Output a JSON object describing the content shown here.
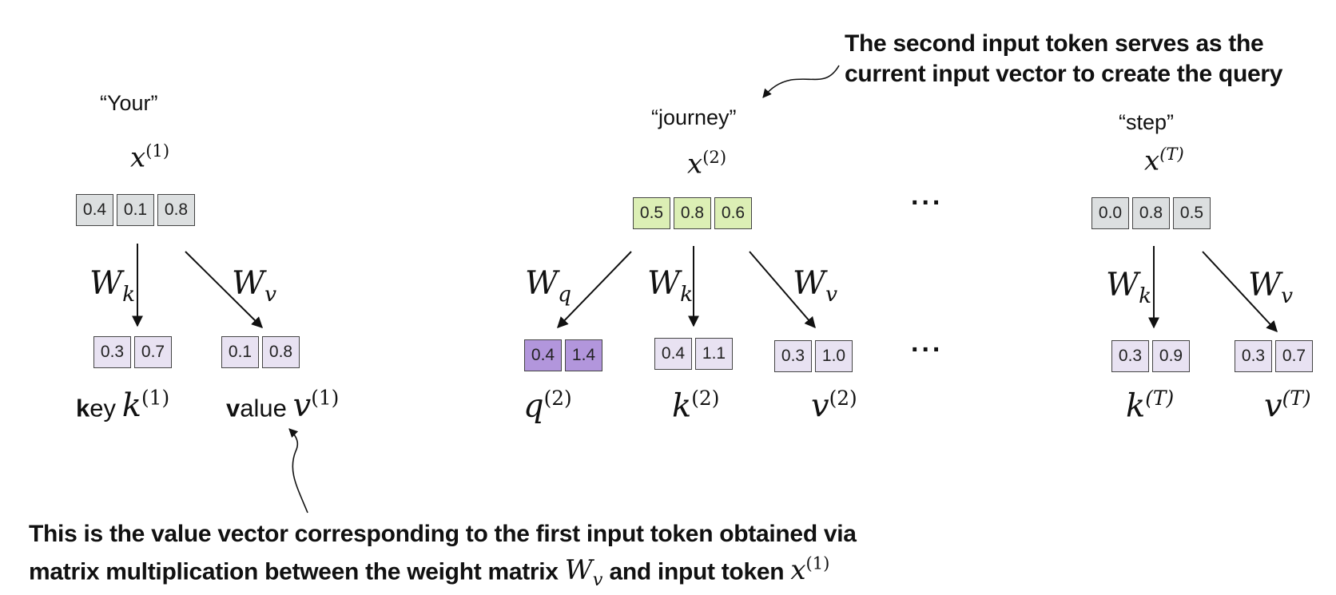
{
  "annotations": {
    "top_line1": "The second input token serves as the",
    "top_line2": "current input vector to create the query",
    "bottom_line1": "This is the value vector corresponding to the first input token obtained via",
    "bottom_line2_pre": "matrix multiplication between the weight matrix",
    "bottom_line2_mid": "and input token",
    "bottom_W": "W",
    "bottom_W_sub": "v",
    "bottom_x": "x",
    "bottom_x_sup": "(1)"
  },
  "tokens": [
    {
      "word": "“Your”",
      "symbol": "x",
      "sup": "(1)",
      "values": [
        "0.4",
        "0.1",
        "0.8"
      ]
    },
    {
      "word": "“journey”",
      "symbol": "x",
      "sup": "(2)",
      "values": [
        "0.5",
        "0.8",
        "0.6"
      ]
    },
    {
      "word": "“step”",
      "symbol": "x",
      "sup": "(T)",
      "values": [
        "0.0",
        "0.8",
        "0.5"
      ]
    }
  ],
  "weights": {
    "W": "W",
    "q": "q",
    "k": "k",
    "v": "v"
  },
  "outputs": {
    "t1_key": {
      "values": [
        "0.3",
        "0.7"
      ],
      "prefix_bold": "k",
      "prefix_rest": "ey",
      "symbol": "k",
      "sup": "(1)"
    },
    "t1_value": {
      "values": [
        "0.1",
        "0.8"
      ],
      "prefix_bold": "v",
      "prefix_rest": "alue",
      "symbol": "v",
      "sup": "(1)"
    },
    "t2_query": {
      "values": [
        "0.4",
        "1.4"
      ],
      "symbol": "q",
      "sup": "(2)"
    },
    "t2_key": {
      "values": [
        "0.4",
        "1.1"
      ],
      "symbol": "k",
      "sup": "(2)"
    },
    "t2_value": {
      "values": [
        "0.3",
        "1.0"
      ],
      "symbol": "v",
      "sup": "(2)"
    },
    "tT_key": {
      "values": [
        "0.3",
        "0.9"
      ],
      "symbol": "k",
      "sup": "(T)"
    },
    "tT_value": {
      "values": [
        "0.3",
        "0.7"
      ],
      "symbol": "v",
      "sup": "(T)"
    }
  },
  "ellipsis": "..."
}
